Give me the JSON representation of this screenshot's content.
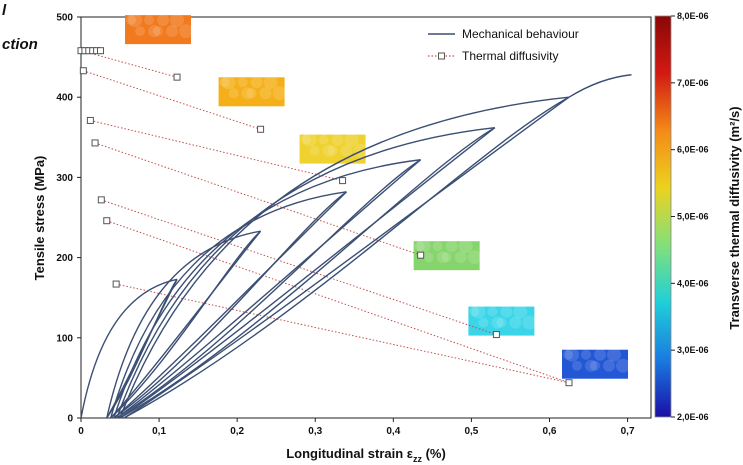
{
  "corner_text": [
    "l",
    "ction"
  ],
  "chart_data": {
    "type": "line",
    "xlabel": "Longitudinal strain ",
    "xlabel_symbol": "ε",
    "xlabel_sub": "zz",
    "xlabel_unit": " (%)",
    "ylabel": "Tensile stress (MPa)",
    "xlim": [
      0,
      0.73
    ],
    "ylim": [
      0,
      500
    ],
    "x_ticks": [
      "0",
      "0,1",
      "0,2",
      "0,3",
      "0,4",
      "0,5",
      "0,6",
      "0,7"
    ],
    "x_tick_values": [
      0,
      0.1,
      0.2,
      0.3,
      0.4,
      0.5,
      0.6,
      0.7
    ],
    "y_ticks": [
      "0",
      "100",
      "200",
      "300",
      "400",
      "500"
    ],
    "y_tick_values": [
      0,
      100,
      200,
      300,
      400,
      500
    ],
    "legend": {
      "position": "top-right",
      "entries": [
        {
          "label": "Mechanical behaviour",
          "style": "line",
          "color": "#3b4f74"
        },
        {
          "label": "Thermal diffusivity",
          "style": "dotted-square",
          "color": "#c0504d"
        }
      ]
    },
    "series": [
      {
        "name": "Mechanical behaviour",
        "color": "#3b4f74",
        "cycles": [
          {
            "peak": [
              0.123,
              173
            ],
            "unload_end": [
              0.033,
              0
            ]
          },
          {
            "peak": [
              0.23,
              233
            ],
            "unload_end": [
              0.038,
              0
            ]
          },
          {
            "peak": [
              0.34,
              282
            ],
            "unload_end": [
              0.042,
              0
            ]
          },
          {
            "peak": [
              0.435,
              322
            ],
            "unload_end": [
              0.046,
              0
            ]
          },
          {
            "peak": [
              0.53,
              362
            ],
            "unload_end": [
              0.05,
              0
            ]
          },
          {
            "peak": [
              0.625,
              400
            ],
            "unload_end": [
              0.055,
              0
            ]
          }
        ],
        "final_point": [
          0.705,
          428
        ]
      },
      {
        "name": "Thermal diffusivity",
        "color": "#c0504d",
        "x_axis_secondary": true,
        "pairs": [
          {
            "start": [
              0.0,
              458
            ],
            "end": [
              0.123,
              425
            ]
          },
          {
            "start": [
              0.003,
              433
            ],
            "end": [
              0.23,
              360
            ]
          },
          {
            "start": [
              0.012,
              371
            ],
            "end": [
              0.335,
              296
            ]
          },
          {
            "start": [
              0.018,
              343
            ],
            "end": [
              0.435,
              203
            ]
          },
          {
            "start": [
              0.026,
              272
            ],
            "end": [
              0.532,
              104
            ]
          },
          {
            "start": [
              0.033,
              246
            ],
            "end": [
              0.625,
              44
            ]
          },
          {
            "start": [
              0.045,
              167
            ],
            "end": [
              0.625,
              44
            ]
          }
        ],
        "initial_marks_x": [
          0.0,
          0.005,
          0.01,
          0.015,
          0.02,
          0.025
        ]
      }
    ],
    "thermal_maps": [
      {
        "near": [
          0.123,
          425
        ],
        "color": "#f07a1d"
      },
      {
        "near": [
          0.23,
          360
        ],
        "color": "#f5b019"
      },
      {
        "near": [
          0.335,
          296
        ],
        "color": "#efd12f"
      },
      {
        "near": [
          0.435,
          203
        ],
        "color": "#86d46c"
      },
      {
        "near": [
          0.532,
          104
        ],
        "color": "#3ad6e8"
      },
      {
        "near": [
          0.625,
          44
        ],
        "color": "#2257d6"
      }
    ],
    "colorbar": {
      "label": "Transverse thermal diffusivity (m²/s)",
      "ticks": [
        "2,0E-06",
        "3,0E-06",
        "4,0E-06",
        "5,0E-06",
        "6,0E-06",
        "7,0E-06",
        "8,0E-06"
      ],
      "tick_values": [
        2e-06,
        3e-06,
        4e-06,
        5e-06,
        6e-06,
        7e-06,
        8e-06
      ],
      "range": [
        2e-06,
        8e-06
      ],
      "colors": [
        "#1a0fa6",
        "#1a7be0",
        "#1fd0d8",
        "#82e07a",
        "#ecd21f",
        "#f48a17",
        "#d21a12",
        "#8a0606"
      ]
    }
  }
}
